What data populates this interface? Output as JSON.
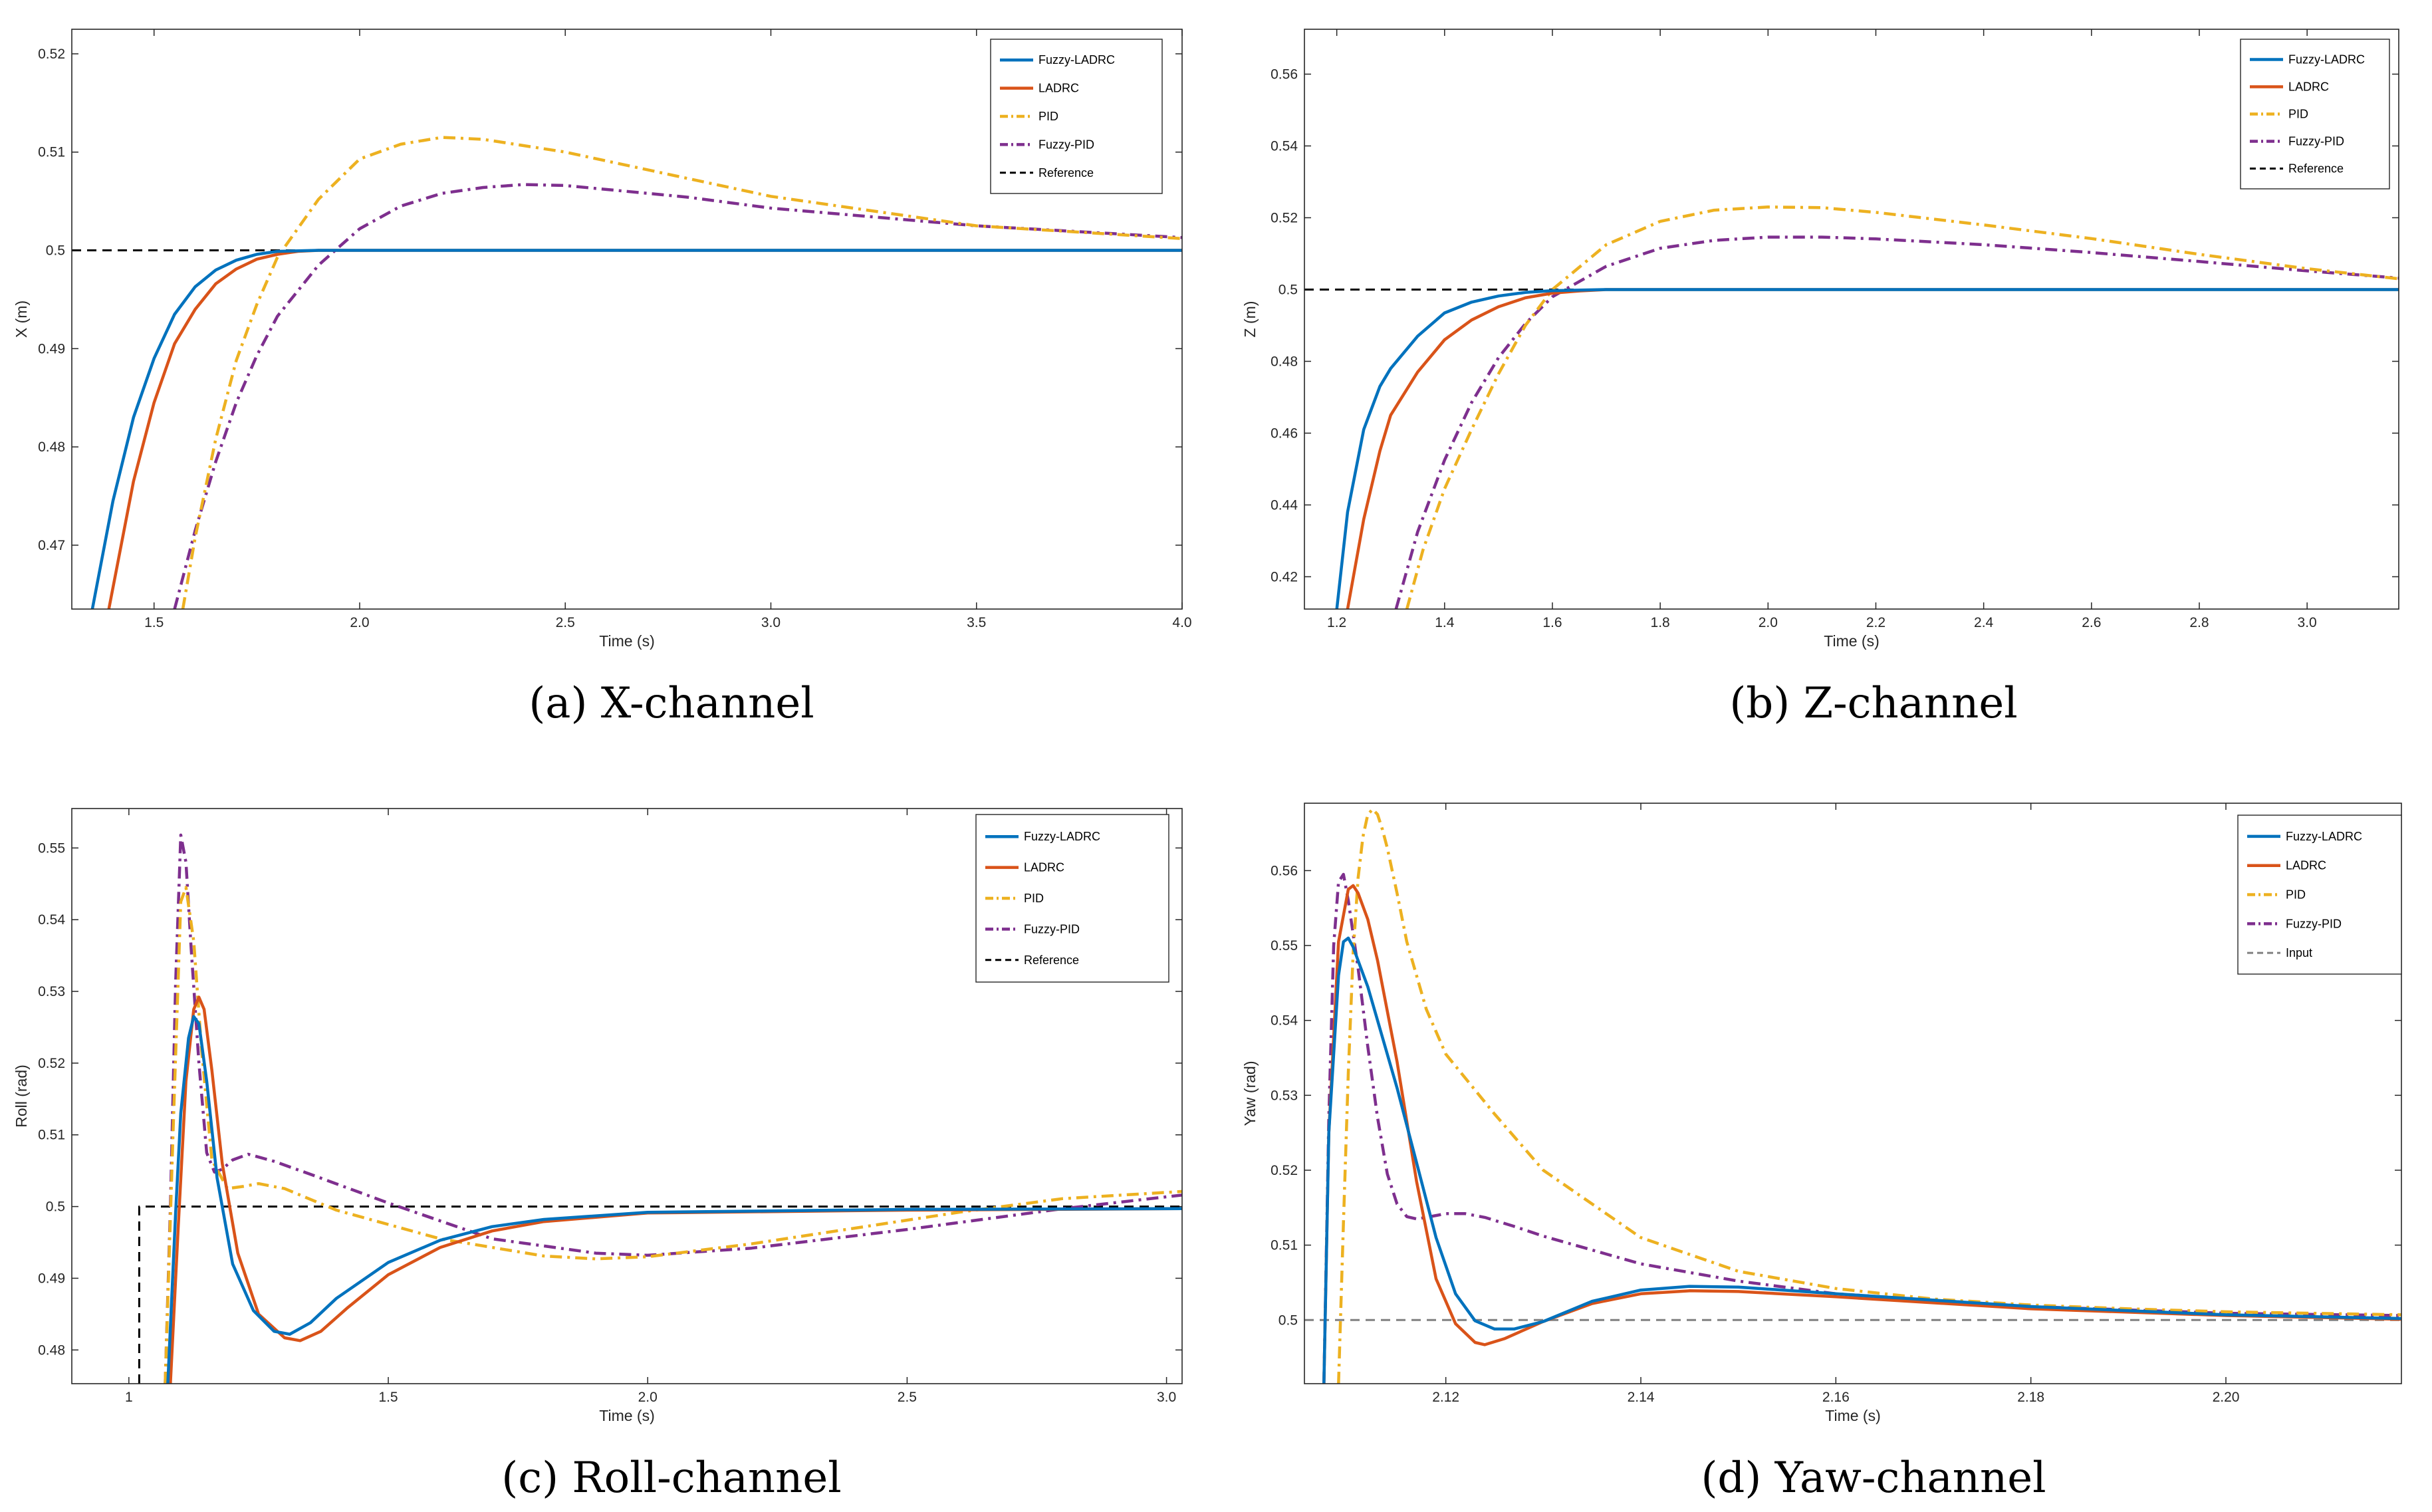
{
  "figure": {
    "captions": [
      "(a)  X-channel",
      "(b)  Z-channel",
      "(c)  Roll-channel",
      "(d)  Yaw-channel"
    ]
  },
  "chart_data": [
    {
      "type": "line",
      "id": "x",
      "caption": "(a)  X-channel",
      "xlabel": "Time (s)",
      "ylabel": "X (m)",
      "xlim": [
        1.3,
        4.0
      ],
      "ylim": [
        0.4635,
        0.5225
      ],
      "xticks": [
        1.5,
        2.0,
        2.5,
        3.0,
        3.5,
        4.0
      ],
      "xtick_labels": [
        "1.5",
        "2.0",
        "2.5",
        "3.0",
        "3.5",
        "4.0"
      ],
      "yticks": [
        0.47,
        0.48,
        0.49,
        0.5,
        0.51,
        0.52
      ],
      "ytick_labels": [
        "0.47",
        "0.48",
        "0.49",
        "0.5",
        "0.51",
        "0.52"
      ],
      "legend_position": "top-right",
      "series": [
        {
          "name": "Fuzzy-LADRC",
          "color": "#0072BD",
          "dash": "solid",
          "x": [
            1.35,
            1.4,
            1.45,
            1.5,
            1.55,
            1.6,
            1.65,
            1.7,
            1.75,
            1.8,
            1.9,
            2.0,
            2.5,
            3.0,
            4.0
          ],
          "y": [
            0.4635,
            0.4745,
            0.483,
            0.489,
            0.4935,
            0.4963,
            0.498,
            0.499,
            0.4996,
            0.4999,
            0.5,
            0.5,
            0.5,
            0.5,
            0.5
          ]
        },
        {
          "name": "LADRC",
          "color": "#D95319",
          "dash": "solid",
          "x": [
            1.39,
            1.45,
            1.5,
            1.55,
            1.6,
            1.65,
            1.7,
            1.75,
            1.8,
            1.85,
            1.9,
            2.0,
            2.5,
            3.0,
            4.0
          ],
          "y": [
            0.4635,
            0.4765,
            0.4845,
            0.4905,
            0.494,
            0.4966,
            0.4981,
            0.4991,
            0.4996,
            0.4999,
            0.5,
            0.5,
            0.5,
            0.5,
            0.5
          ]
        },
        {
          "name": "PID",
          "color": "#EDB120",
          "dash": "dashdot",
          "x": [
            1.57,
            1.6,
            1.65,
            1.7,
            1.75,
            1.8,
            1.9,
            2.0,
            2.1,
            2.2,
            2.3,
            2.5,
            2.8,
            3.0,
            3.5,
            4.0
          ],
          "y": [
            0.4635,
            0.4708,
            0.4808,
            0.4888,
            0.4945,
            0.4993,
            0.5052,
            0.5093,
            0.5108,
            0.5115,
            0.5113,
            0.51,
            0.5073,
            0.5055,
            0.5025,
            0.5012
          ]
        },
        {
          "name": "Fuzzy-PID",
          "color": "#7E2F8E",
          "dash": "dashdot",
          "x": [
            1.55,
            1.6,
            1.65,
            1.7,
            1.75,
            1.8,
            1.9,
            2.0,
            2.1,
            2.2,
            2.3,
            2.4,
            2.5,
            2.8,
            3.0,
            3.5,
            4.0
          ],
          "y": [
            0.4635,
            0.4715,
            0.4785,
            0.4845,
            0.4893,
            0.4933,
            0.4985,
            0.5022,
            0.5045,
            0.5058,
            0.5064,
            0.5067,
            0.5066,
            0.5054,
            0.5043,
            0.5025,
            0.5013
          ]
        },
        {
          "name": "Reference",
          "color": "#000000",
          "dash": "dashed",
          "x": [
            1.3,
            4.0
          ],
          "y": [
            0.5,
            0.5
          ]
        }
      ]
    },
    {
      "type": "line",
      "id": "z",
      "caption": "(b)  Z-channel",
      "xlabel": "Time (s)",
      "ylabel": "Z (m)",
      "xlim": [
        1.14,
        3.17
      ],
      "ylim": [
        0.411,
        0.5725
      ],
      "xticks": [
        1.2,
        1.4,
        1.6,
        1.8,
        2.0,
        2.2,
        2.4,
        2.6,
        2.8,
        3.0
      ],
      "xtick_labels": [
        "1.2",
        "1.4",
        "1.6",
        "1.8",
        "2.0",
        "2.2",
        "2.4",
        "2.6",
        "2.8",
        "3.0"
      ],
      "yticks": [
        0.42,
        0.44,
        0.46,
        0.48,
        0.5,
        0.52,
        0.54,
        0.56
      ],
      "ytick_labels": [
        "0.42",
        "0.44",
        "0.46",
        "0.48",
        "0.5",
        "0.52",
        "0.54",
        "0.56"
      ],
      "legend_position": "top-right",
      "series": [
        {
          "name": "Fuzzy-LADRC",
          "color": "#0072BD",
          "dash": "solid",
          "x": [
            1.2,
            1.22,
            1.25,
            1.28,
            1.3,
            1.35,
            1.4,
            1.45,
            1.5,
            1.55,
            1.6,
            1.7,
            2.0,
            3.17
          ],
          "y": [
            0.411,
            0.438,
            0.461,
            0.473,
            0.478,
            0.487,
            0.4935,
            0.4965,
            0.4982,
            0.4992,
            0.4997,
            0.5,
            0.5,
            0.5
          ]
        },
        {
          "name": "LADRC",
          "color": "#D95319",
          "dash": "solid",
          "x": [
            1.22,
            1.25,
            1.28,
            1.3,
            1.35,
            1.4,
            1.45,
            1.5,
            1.55,
            1.6,
            1.65,
            1.7,
            2.0,
            3.17
          ],
          "y": [
            0.411,
            0.436,
            0.455,
            0.465,
            0.477,
            0.486,
            0.4915,
            0.4952,
            0.4977,
            0.499,
            0.4996,
            0.5,
            0.5,
            0.5
          ]
        },
        {
          "name": "PID",
          "color": "#EDB120",
          "dash": "dashdot",
          "x": [
            1.33,
            1.36,
            1.4,
            1.45,
            1.5,
            1.55,
            1.6,
            1.7,
            1.8,
            1.9,
            2.0,
            2.1,
            2.2,
            2.4,
            2.6,
            2.8,
            3.0,
            3.17
          ],
          "y": [
            0.411,
            0.4275,
            0.4445,
            0.461,
            0.4765,
            0.49,
            0.5,
            0.5125,
            0.519,
            0.5221,
            0.523,
            0.5228,
            0.5215,
            0.518,
            0.5142,
            0.5098,
            0.5058,
            0.503
          ]
        },
        {
          "name": "Fuzzy-PID",
          "color": "#7E2F8E",
          "dash": "dashdot",
          "x": [
            1.31,
            1.35,
            1.4,
            1.45,
            1.5,
            1.55,
            1.6,
            1.7,
            1.8,
            1.9,
            2.0,
            2.1,
            2.2,
            2.4,
            2.6,
            2.8,
            3.0,
            3.17
          ],
          "y": [
            0.411,
            0.4325,
            0.4525,
            0.4685,
            0.481,
            0.4905,
            0.498,
            0.5065,
            0.5115,
            0.5137,
            0.5146,
            0.5146,
            0.5141,
            0.5125,
            0.5103,
            0.5078,
            0.5052,
            0.5032
          ]
        },
        {
          "name": "Reference",
          "color": "#000000",
          "dash": "dashed",
          "x": [
            1.14,
            3.17
          ],
          "y": [
            0.5,
            0.5
          ]
        }
      ]
    },
    {
      "type": "line",
      "id": "roll",
      "caption": "(c)  Roll-channel",
      "xlabel": "Time (s)",
      "ylabel": "Roll (rad)",
      "xlim": [
        0.89,
        3.03
      ],
      "ylim": [
        0.4753,
        0.5555
      ],
      "xticks": [
        1.0,
        1.5,
        2.0,
        2.5,
        3.0
      ],
      "xtick_labels": [
        "1",
        "1.5",
        "2.0",
        "2.5",
        "3.0"
      ],
      "yticks": [
        0.48,
        0.49,
        0.5,
        0.51,
        0.52,
        0.53,
        0.54,
        0.55
      ],
      "ytick_labels": [
        "0.48",
        "0.49",
        "0.5",
        "0.51",
        "0.52",
        "0.53",
        "0.54",
        "0.55"
      ],
      "legend_position": "top-right",
      "series": [
        {
          "name": "Fuzzy-LADRC",
          "color": "#0072BD",
          "dash": "solid",
          "x": [
            1.075,
            1.09,
            1.1,
            1.115,
            1.125,
            1.135,
            1.15,
            1.17,
            1.2,
            1.24,
            1.28,
            1.31,
            1.35,
            1.4,
            1.5,
            1.6,
            1.7,
            1.8,
            2.0,
            2.5,
            3.03
          ],
          "y": [
            0.4753,
            0.499,
            0.513,
            0.5235,
            0.5265,
            0.5255,
            0.5175,
            0.504,
            0.492,
            0.4855,
            0.4826,
            0.4822,
            0.4838,
            0.4872,
            0.4922,
            0.4953,
            0.4972,
            0.4982,
            0.4992,
            0.4996,
            0.4997
          ]
        },
        {
          "name": "LADRC",
          "color": "#D95319",
          "dash": "solid",
          "x": [
            1.08,
            1.095,
            1.11,
            1.125,
            1.135,
            1.145,
            1.16,
            1.18,
            1.21,
            1.25,
            1.3,
            1.33,
            1.37,
            1.42,
            1.5,
            1.6,
            1.7,
            1.8,
            2.0,
            2.5,
            3.03
          ],
          "y": [
            0.4753,
            0.497,
            0.5175,
            0.5275,
            0.5292,
            0.5275,
            0.519,
            0.506,
            0.4935,
            0.485,
            0.4817,
            0.4813,
            0.4826,
            0.4858,
            0.4905,
            0.4943,
            0.4966,
            0.4979,
            0.4991,
            0.4995,
            0.4997
          ]
        },
        {
          "name": "PID",
          "color": "#EDB120",
          "dash": "dashdot",
          "x": [
            1.07,
            1.085,
            1.1,
            1.11,
            1.125,
            1.14,
            1.16,
            1.19,
            1.22,
            1.25,
            1.3,
            1.4,
            1.6,
            1.8,
            1.9,
            2.0,
            2.2,
            2.4,
            2.6,
            2.8,
            3.03
          ],
          "y": [
            0.4753,
            0.51,
            0.5425,
            0.5445,
            0.537,
            0.522,
            0.5065,
            0.5025,
            0.5028,
            0.5032,
            0.5025,
            0.4995,
            0.4955,
            0.4931,
            0.4927,
            0.493,
            0.4948,
            0.497,
            0.4992,
            0.5011,
            0.5021
          ]
        },
        {
          "name": "Fuzzy-PID",
          "color": "#7E2F8E",
          "dash": "dashdot",
          "x": [
            1.07,
            1.08,
            1.09,
            1.1,
            1.11,
            1.12,
            1.135,
            1.15,
            1.165,
            1.18,
            1.2,
            1.23,
            1.28,
            1.35,
            1.5,
            1.7,
            1.9,
            2.0,
            2.2,
            2.5,
            2.8,
            3.03
          ],
          "y": [
            0.4753,
            0.5,
            0.531,
            0.5518,
            0.548,
            0.536,
            0.52,
            0.5075,
            0.5048,
            0.5052,
            0.5065,
            0.5073,
            0.5063,
            0.5045,
            0.5005,
            0.4955,
            0.4935,
            0.4932,
            0.4942,
            0.4968,
            0.4997,
            0.5016
          ]
        },
        {
          "name": "Reference",
          "color": "#000000",
          "dash": "dashed",
          "x": [
            1.02,
            1.02,
            3.03
          ],
          "y": [
            0.4753,
            0.5,
            0.5
          ]
        }
      ]
    },
    {
      "type": "line",
      "id": "yaw",
      "caption": "(d)  Yaw-channel",
      "xlabel": "Time (s)",
      "ylabel": "Yaw (rad)",
      "xlim": [
        2.1055,
        2.218
      ],
      "ylim": [
        0.4915,
        0.569
      ],
      "xticks": [
        2.12,
        2.14,
        2.16,
        2.18,
        2.2
      ],
      "xtick_labels": [
        "2.12",
        "2.14",
        "2.16",
        "2.18",
        "2.20"
      ],
      "yticks": [
        0.5,
        0.51,
        0.52,
        0.53,
        0.54,
        0.55,
        0.56
      ],
      "ytick_labels": [
        "0.5",
        "0.51",
        "0.52",
        "0.53",
        "0.54",
        "0.55",
        "0.56"
      ],
      "legend_position": "top-right",
      "series": [
        {
          "name": "Fuzzy-LADRC",
          "color": "#0072BD",
          "dash": "solid",
          "x": [
            2.1075,
            2.108,
            2.109,
            2.1095,
            2.11,
            2.1105,
            2.111,
            2.112,
            2.113,
            2.115,
            2.117,
            2.119,
            2.121,
            2.123,
            2.125,
            2.127,
            2.13,
            2.135,
            2.14,
            2.145,
            2.15,
            2.16,
            2.18,
            2.2,
            2.218
          ],
          "y": [
            0.4915,
            0.525,
            0.546,
            0.5505,
            0.551,
            0.5498,
            0.548,
            0.5445,
            0.54,
            0.531,
            0.521,
            0.511,
            0.5035,
            0.4999,
            0.4988,
            0.4988,
            0.4998,
            0.5025,
            0.504,
            0.5045,
            0.5044,
            0.5035,
            0.5018,
            0.5007,
            0.5002
          ]
        },
        {
          "name": "LADRC",
          "color": "#D95319",
          "dash": "solid",
          "x": [
            2.1075,
            2.108,
            2.109,
            2.11,
            2.1105,
            2.111,
            2.112,
            2.113,
            2.115,
            2.117,
            2.119,
            2.121,
            2.123,
            2.124,
            2.126,
            2.13,
            2.135,
            2.14,
            2.145,
            2.15,
            2.16,
            2.18,
            2.2,
            2.218
          ],
          "y": [
            0.4915,
            0.525,
            0.5505,
            0.5575,
            0.558,
            0.557,
            0.5535,
            0.548,
            0.5345,
            0.5185,
            0.5055,
            0.4995,
            0.497,
            0.4967,
            0.4975,
            0.4998,
            0.5022,
            0.5035,
            0.5039,
            0.5038,
            0.5031,
            0.5015,
            0.5006,
            0.5001
          ]
        },
        {
          "name": "PID",
          "color": "#EDB120",
          "dash": "dashdot",
          "x": [
            2.109,
            2.1095,
            2.11,
            2.1105,
            2.111,
            2.1115,
            2.112,
            2.1125,
            2.113,
            2.1135,
            2.114,
            2.115,
            2.116,
            2.118,
            2.12,
            2.125,
            2.13,
            2.14,
            2.15,
            2.16,
            2.17,
            2.18,
            2.19,
            2.2,
            2.218
          ],
          "y": [
            0.4915,
            0.513,
            0.533,
            0.549,
            0.559,
            0.5645,
            0.5675,
            0.5682,
            0.5675,
            0.5655,
            0.563,
            0.557,
            0.5505,
            0.5415,
            0.5355,
            0.5275,
            0.52,
            0.511,
            0.5065,
            0.5042,
            0.5028,
            0.502,
            0.5015,
            0.5011,
            0.5007
          ]
        },
        {
          "name": "Fuzzy-PID",
          "color": "#7E2F8E",
          "dash": "dashdot",
          "x": [
            2.1075,
            2.108,
            2.1085,
            2.109,
            2.1095,
            2.11,
            2.111,
            2.112,
            2.113,
            2.114,
            2.115,
            2.116,
            2.117,
            2.118,
            2.12,
            2.122,
            2.124,
            2.127,
            2.13,
            2.14,
            2.15,
            2.16,
            2.18,
            2.2,
            2.218
          ],
          "y": [
            0.4915,
            0.527,
            0.55,
            0.5585,
            0.5595,
            0.556,
            0.547,
            0.5365,
            0.527,
            0.5195,
            0.5155,
            0.5138,
            0.5135,
            0.5137,
            0.5142,
            0.5142,
            0.5137,
            0.5125,
            0.5112,
            0.5075,
            0.5052,
            0.5035,
            0.5018,
            0.5009,
            0.5006
          ]
        },
        {
          "name": "Input",
          "color": "#808080",
          "dash": "dashed",
          "x": [
            2.1055,
            2.218
          ],
          "y": [
            0.5,
            0.5
          ]
        }
      ]
    }
  ]
}
